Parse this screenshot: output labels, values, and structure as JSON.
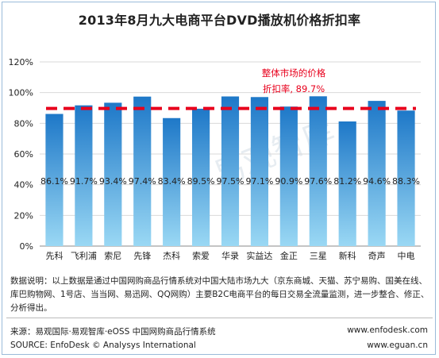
{
  "header": {
    "title": "2013年8月九大电商平台DVD播放机价格折扣率"
  },
  "chart_data": {
    "type": "bar",
    "title": "2013年8月九大电商平台DVD播放机价格折扣率",
    "categories": [
      "先科",
      "飞利浦",
      "索尼",
      "先锋",
      "杰科",
      "索爱",
      "华录",
      "实益达",
      "金正",
      "三星",
      "新科",
      "奇声",
      "中电"
    ],
    "values": [
      86.1,
      91.7,
      93.4,
      97.4,
      83.4,
      89.5,
      97.5,
      97.1,
      90.9,
      97.6,
      81.2,
      94.6,
      88.3
    ],
    "value_labels": [
      "86.1%",
      "91.7%",
      "93.4%",
      "97.4%",
      "83.4%",
      "89.5%",
      "97.5%",
      "97.1%",
      "90.9%",
      "97.6%",
      "81.2%",
      "94.6%",
      "88.3%"
    ],
    "ylim": [
      0,
      120
    ],
    "yticks": [
      0,
      20,
      40,
      60,
      80,
      100,
      120
    ],
    "ytick_labels": [
      "0%",
      "20%",
      "40%",
      "60%",
      "80%",
      "100%",
      "120%"
    ],
    "xlabel": "",
    "ylabel": "",
    "grid": "horizontal",
    "reference_line": {
      "value": 89.7,
      "label_lines": [
        "整体市场的价格",
        "折扣率, 89.7%"
      ],
      "color": "#e8001c"
    },
    "bar_color_top": "#1e78c8",
    "bar_color_bottom": "#9ad8f4",
    "watermark": "易观智库"
  },
  "note": "数据说明：以上数据是通过中国网购商品行情系统对中国大陆市场九大（京东商城、天猫、苏宁易购、国美在线、库巴购物网、1号店、当当网、易迅网、QQ网购）主要B2C电商平台的每日交易全流量监测，进一步整合、修正、分析得出。",
  "footer": {
    "source_cn": "来源：易观国际·易观智库·eOSS 中国网购商品行情系统",
    "url1": "www.enfodesk.com",
    "source_en": "SOURCE: EnfoDesk © Analysys International",
    "url2": "www.eguan.cn"
  }
}
